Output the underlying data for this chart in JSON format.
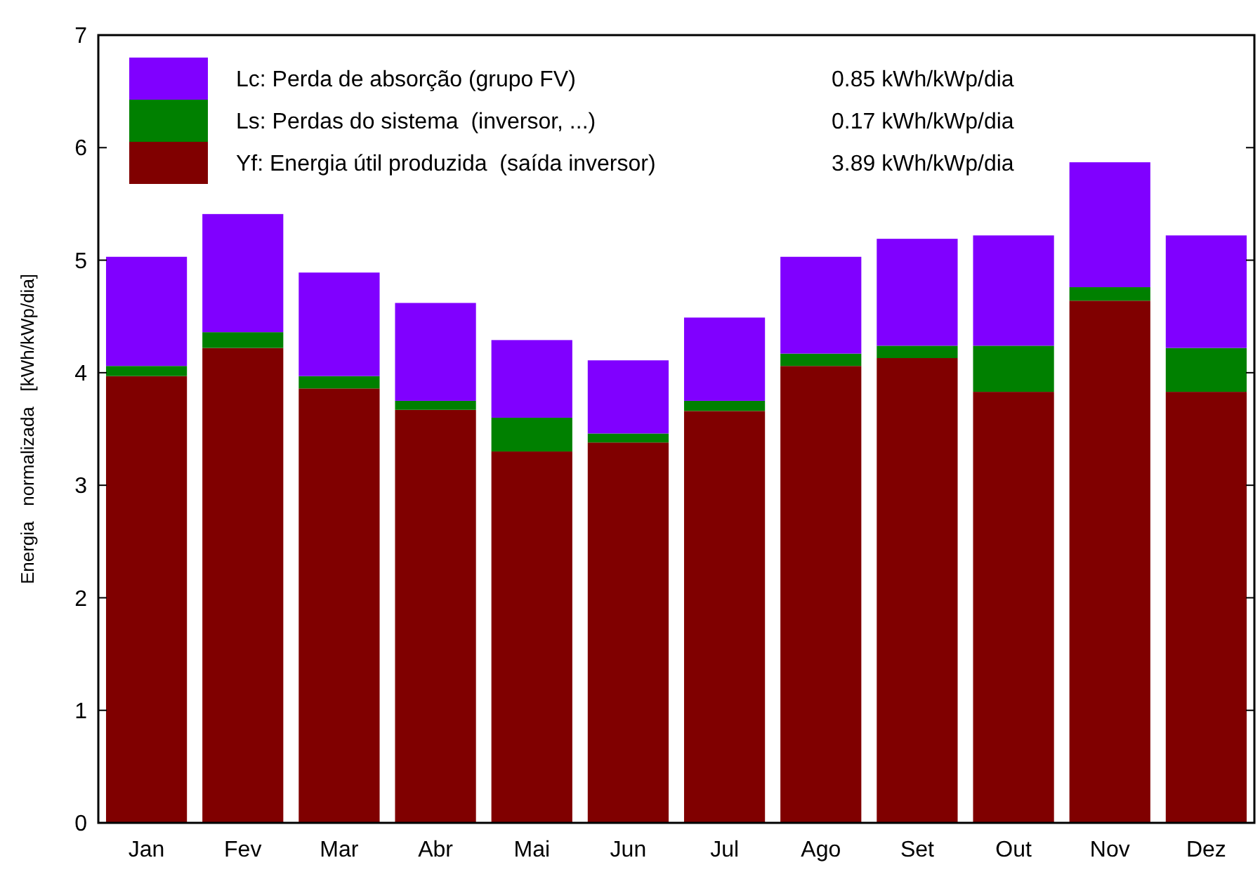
{
  "chart_data": {
    "type": "bar",
    "stacked": true,
    "ylabel": "Energia   normalizada   [kWh/kWp/dia]",
    "categories": [
      "Jan",
      "Fev",
      "Mar",
      "Abr",
      "Mai",
      "Jun",
      "Jul",
      "Ago",
      "Set",
      "Out",
      "Nov",
      "Dez"
    ],
    "series": [
      {
        "name": "Yf: Energia útil produzida  (saída inversor)",
        "color": "#800000",
        "values": [
          3.97,
          4.22,
          3.86,
          3.67,
          3.3,
          3.38,
          3.66,
          4.06,
          4.13,
          3.83,
          4.64,
          3.83
        ]
      },
      {
        "name": "Ls: Perdas do sistema  (inversor, ...)",
        "color": "#008000",
        "values": [
          0.09,
          0.14,
          0.11,
          0.08,
          0.3,
          0.08,
          0.09,
          0.11,
          0.11,
          0.41,
          0.12,
          0.39
        ]
      },
      {
        "name": "Lc: Perda de absorção (grupo FV)",
        "color": "#8000ff",
        "values": [
          0.97,
          1.05,
          0.92,
          0.87,
          0.69,
          0.65,
          0.74,
          0.86,
          0.95,
          0.98,
          1.11,
          1.0
        ]
      }
    ],
    "annotations": [
      "3.89 kWh/kWp/dia",
      "0.17 kWh/kWp/dia",
      "0.85 kWh/kWp/dia"
    ],
    "ylim": [
      0,
      7
    ],
    "yticks": [
      0,
      1,
      2,
      3,
      4,
      5,
      6,
      7
    ],
    "legend": "top left"
  }
}
